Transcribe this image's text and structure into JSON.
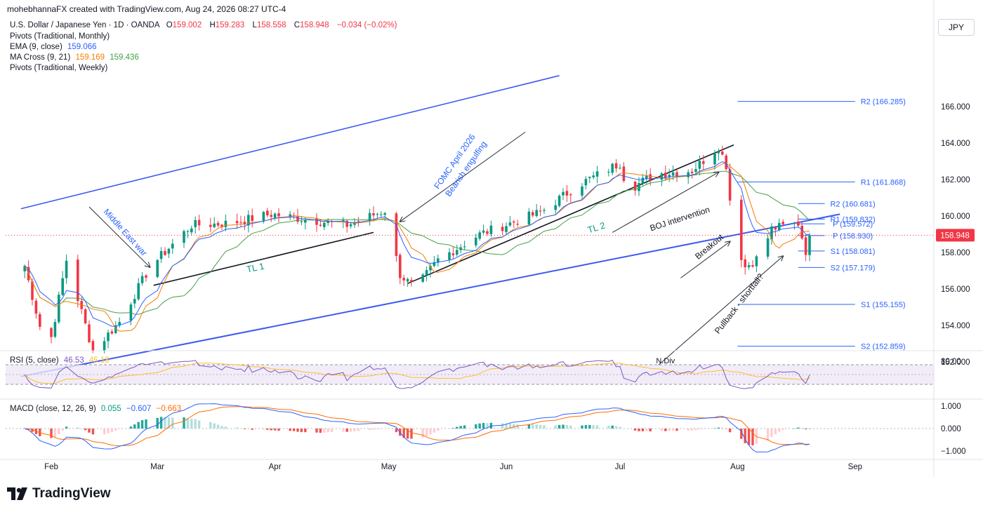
{
  "header": {
    "author_line": "mohebhannaFX created with TradingView.com, Aug 24, 2026 08:27 UTC-4"
  },
  "symbol": {
    "name": "U.S. Dollar / Japanese Yen · 1D · OANDA",
    "o_label": "O",
    "o": "159.002",
    "h_label": "H",
    "h": "159.283",
    "l_label": "L",
    "l": "158.558",
    "c_label": "C",
    "c": "158.948",
    "change": "−0.034 (−0.02%)"
  },
  "indicators": {
    "pivots_monthly": "Pivots (Traditional, Monthly)",
    "ema_label": "EMA (9, close)",
    "ema_value": "159.066",
    "ma_cross_label": "MA Cross (9, 21)",
    "ma_fast": "159.169",
    "ma_slow": "159.436",
    "pivots_weekly": "Pivots (Traditional, Weekly)"
  },
  "currency_button": "JPY",
  "logo_text": "TradingView",
  "colors": {
    "up": "#089981",
    "down": "#f23645",
    "trend_blue": "#3d5af1",
    "ema": "#2962ff",
    "ma_fast": "#f57c00",
    "ma_slow": "#43a047",
    "rsi": "#7e57c2",
    "rsi_ma": "#fbc02d",
    "macd": "#2962ff",
    "signal": "#ff6d00"
  },
  "chart_data": [
    {
      "type": "candlestick",
      "title": "U.S. Dollar / Japanese Yen · 1D · OANDA",
      "ylim": [
        151.0,
        168.0
      ],
      "y_ticks": [
        "152.000",
        "154.000",
        "156.000",
        "158.000",
        "160.000",
        "162.000",
        "164.000",
        "166.000"
      ],
      "last_price": "158.948",
      "x_months": [
        "Feb",
        "Mar",
        "Apr",
        "May",
        "Jun",
        "Jul",
        "Aug",
        "Sep"
      ],
      "anchors": [
        {
          "x": "Jan 24",
          "close": 158.1
        },
        {
          "x": "Jan 31",
          "close": 152.3
        },
        {
          "x": "Feb 05",
          "close": 157.6
        },
        {
          "x": "Feb 12",
          "close": 152.6
        },
        {
          "x": "Feb 19",
          "close": 154.2
        },
        {
          "x": "Feb 27",
          "close": 157.2
        },
        {
          "x": "Mar 10",
          "close": 159.5
        },
        {
          "x": "Mar 20",
          "close": 159.6
        },
        {
          "x": "Mar 31",
          "close": 160.1
        },
        {
          "x": "Apr 20",
          "close": 159.5
        },
        {
          "x": "Apr 30",
          "close": 160.3
        },
        {
          "x": "May 04",
          "close": 156.8
        },
        {
          "x": "May 08",
          "close": 156.0
        },
        {
          "x": "May 14",
          "close": 157.6
        },
        {
          "x": "May 25",
          "close": 159.0
        },
        {
          "x": "Jun 10",
          "close": 160.2
        },
        {
          "x": "Jun 20",
          "close": 161.7
        },
        {
          "x": "Jul 01",
          "close": 162.9
        },
        {
          "x": "Jul 03",
          "close": 161.4
        },
        {
          "x": "Jul 10",
          "close": 162.3
        },
        {
          "x": "Jul 20",
          "close": 162.5
        },
        {
          "x": "Jul 27",
          "close": 163.8
        },
        {
          "x": "Jul 29",
          "close": 162.8
        },
        {
          "x": "Jul 31",
          "close": 159.0
        },
        {
          "x": "Aug 03",
          "close": 157.2
        },
        {
          "x": "Aug 07",
          "close": 157.8
        },
        {
          "x": "Aug 10",
          "close": 159.3
        },
        {
          "x": "Aug 17",
          "close": 159.6
        },
        {
          "x": "Aug 19",
          "close": 158.1
        },
        {
          "x": "Aug 21",
          "close": 158.95
        }
      ],
      "pivot_levels": [
        {
          "label": "R2 (166.285)",
          "value": 166.285
        },
        {
          "label": "R1 (161.868)",
          "value": 161.868
        },
        {
          "label": "S1 (155.155)",
          "value": 155.155
        },
        {
          "label": "S2 (152.859)",
          "value": 152.859
        },
        {
          "label": "R2 (160.681)",
          "value": 160.681
        },
        {
          "label": "R1 (159.832)",
          "value": 159.832
        },
        {
          "label": "P (159.572)",
          "value": 159.572
        },
        {
          "label": "P (158.930)",
          "value": 158.93
        },
        {
          "label": "S1 (158.081)",
          "value": 158.081
        },
        {
          "label": "S2 (157.179)",
          "value": 157.179
        }
      ],
      "annotations": {
        "middle_east": "Middle East war",
        "tl1": "TL 1",
        "fomc_line1": "FOMC April 2026",
        "fomc_line2": "Bearish engulfing",
        "tl2": "TL 2",
        "boj": "BOJ intervention",
        "breakout": "Breakout",
        "pullback": "Pullback - shortfall?"
      }
    },
    {
      "type": "line",
      "title": "RSI (5, close)",
      "rsi_value": "46.53",
      "rsi_ma_value": "45.18",
      "y_ticks": [
        "80.00"
      ],
      "annotation": "N.Div"
    },
    {
      "type": "line",
      "title": "MACD (close, 12, 26, 9)",
      "hist_value": "0.055",
      "macd_value": "−0.607",
      "signal_value": "−0.663",
      "y_ticks": [
        "1.000",
        "0.000",
        "−1.000"
      ]
    }
  ]
}
